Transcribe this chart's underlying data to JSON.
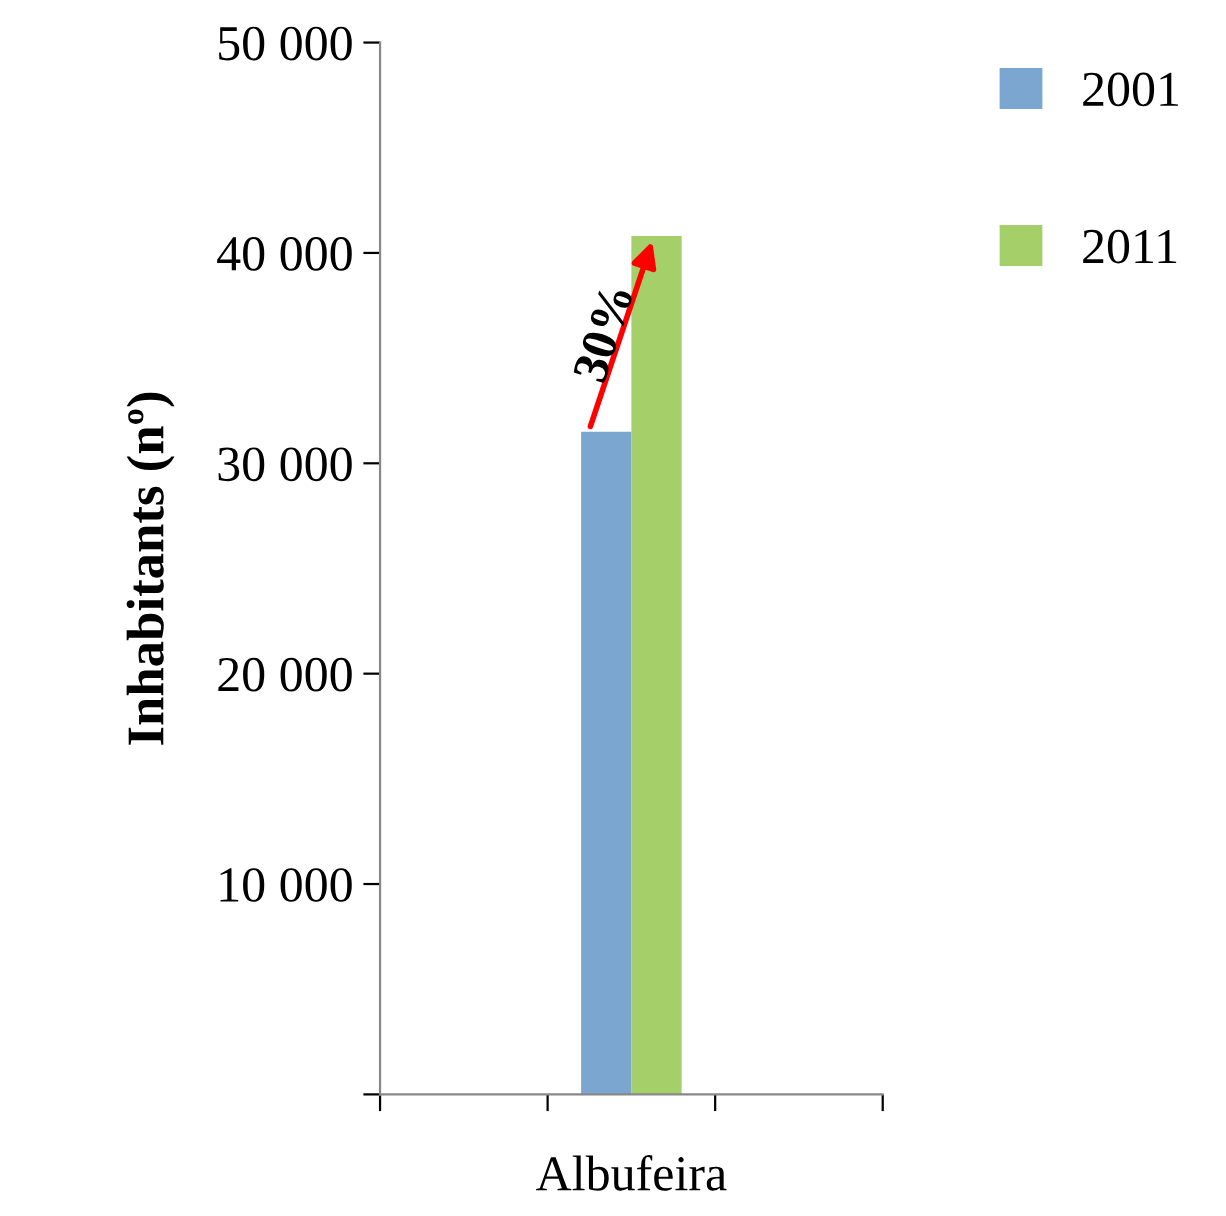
{
  "chart_data": {
    "type": "bar",
    "ylabel": "Inhabitants (nº)",
    "categories": [
      null,
      "Albufeira",
      null
    ],
    "series": [
      {
        "name": "2001",
        "color": "#7aa6cf",
        "values": [
          null,
          31500,
          null
        ]
      },
      {
        "name": "2011",
        "color": "#a5cf69",
        "values": [
          null,
          40800,
          null
        ]
      }
    ],
    "ylim": [
      0,
      50000
    ],
    "yticks": [
      {
        "value": 0,
        "label": null
      },
      {
        "value": 10000,
        "label": "10 000"
      },
      {
        "value": 20000,
        "label": "20 000"
      },
      {
        "value": 30000,
        "label": "30 000"
      },
      {
        "value": 40000,
        "label": "40 000"
      },
      {
        "value": 50000,
        "label": "50 000"
      }
    ],
    "annotations": [
      "30%"
    ],
    "legend": "top right",
    "grid": false
  }
}
